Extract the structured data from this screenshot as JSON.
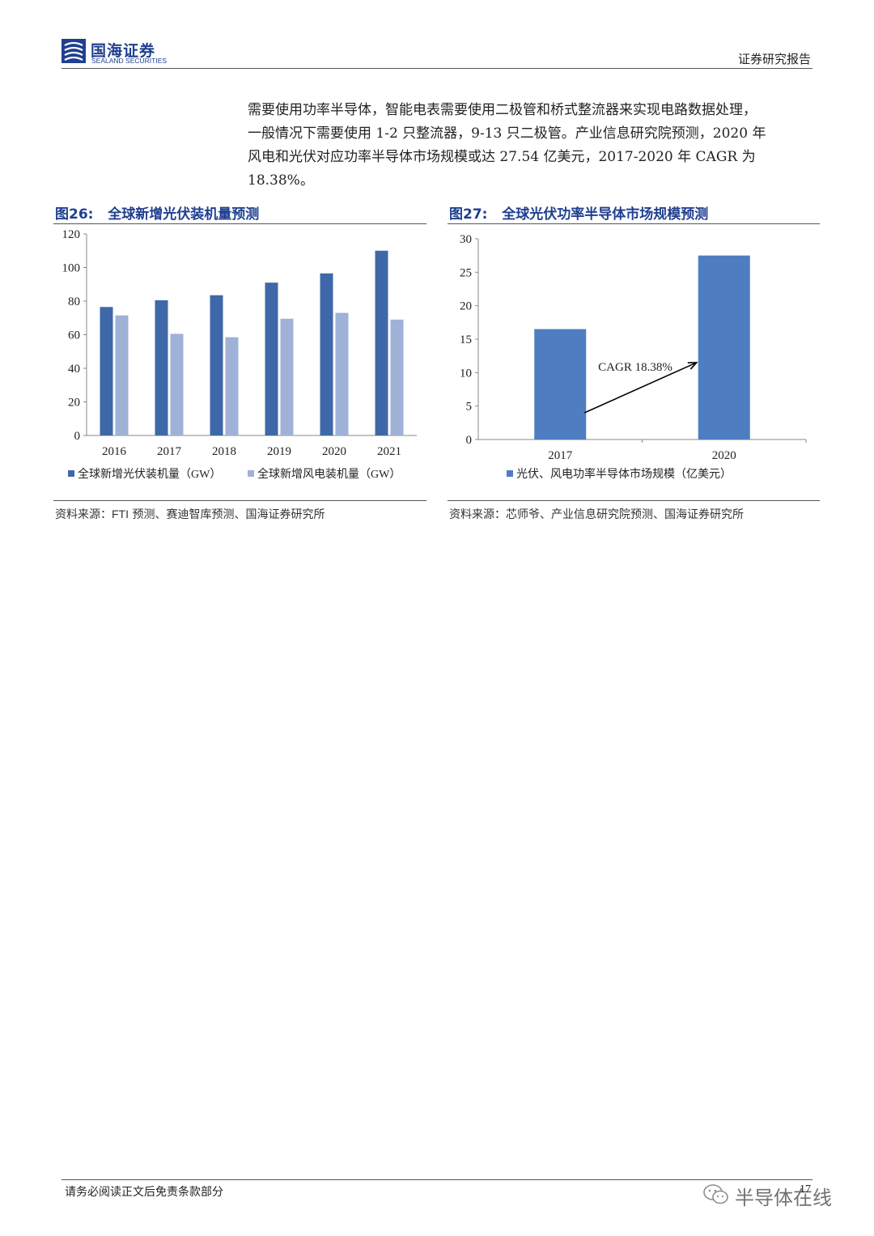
{
  "header": {
    "logo_cn": "国海证券",
    "logo_en": "SEALAND SECURITIES",
    "report_type": "证券研究报告"
  },
  "body": {
    "lines": [
      "需要使用功率半导体，智能电表需要使用二极管和桥式整流器来实现电路数据处理，",
      "一般情况下需要使用 1-2 只整流器，9-13 只二极管。产业信息研究院预测，2020 年",
      "风电和光伏对应功率半导体市场规模或达 27.54 亿美元，2017-2020 年 CAGR 为",
      "18.38%。"
    ]
  },
  "figures": [
    {
      "number": "图26:",
      "title": "全球新增光伏装机量预测",
      "source_prefix": "资料来源：",
      "source_latin": "FTI",
      "source_rest": " 预测、赛迪智库预测、国海证券研究所"
    },
    {
      "number": "图27:",
      "title": "全球光伏功率半导体市场规模预测",
      "source_prefix": "资料来源：芯师爷、产业信息研究院预测、国海证券研究所",
      "source_latin": "",
      "source_rest": ""
    }
  ],
  "chart_data": [
    {
      "type": "bar",
      "categories": [
        "2016",
        "2017",
        "2018",
        "2019",
        "2020",
        "2021"
      ],
      "series": [
        {
          "name": "全球新增光伏装机量（GW）",
          "values": [
            76.5,
            80.5,
            83.5,
            91,
            96.5,
            110
          ],
          "color": "#3e68a8"
        },
        {
          "name": "全球新增风电装机量（GW）",
          "values": [
            71.5,
            60.5,
            58.5,
            69.5,
            73,
            69
          ],
          "color": "#9fb1d6"
        }
      ],
      "ylim": [
        0,
        120
      ],
      "yticks": [
        "0",
        "20",
        "40",
        "60",
        "80",
        "100",
        "120"
      ],
      "grid": false,
      "legend": "bottom"
    },
    {
      "type": "bar",
      "categories": [
        "2017",
        "2020"
      ],
      "series": [
        {
          "name": "光伏、风电功率半导体市场规模（亿美元）",
          "values": [
            16.5,
            27.5
          ],
          "color": "#4f7dc1"
        }
      ],
      "ylim": [
        0,
        30
      ],
      "yticks": [
        "0",
        "5",
        "10",
        "15",
        "20",
        "25",
        "30"
      ],
      "annotation": "CAGR 18.38%",
      "grid": false,
      "legend": "bottom"
    }
  ],
  "footer": {
    "disclaimer": "请务必阅读正文后免责条款部分",
    "page": "17",
    "watermark": "半导体在线"
  }
}
